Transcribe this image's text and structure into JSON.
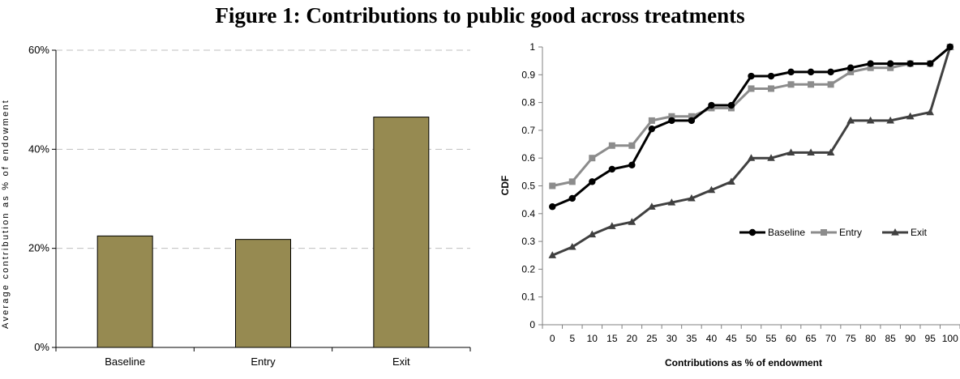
{
  "figure_title": "Figure 1: Contributions to public good across treatments",
  "colors": {
    "bar_fill": "#968A51",
    "gridline": "#BFBFBF",
    "axis": "#808080",
    "baseline": "#000000",
    "entry": "#8C8C8C",
    "exit": "#404040"
  },
  "chart_data": [
    {
      "type": "bar",
      "title": "",
      "categories": [
        "Baseline",
        "Entry",
        "Exit"
      ],
      "values": [
        22.5,
        21.8,
        46.5
      ],
      "ylabel": "Average contribution as % of endowment",
      "xlabel": "",
      "ylim": [
        0,
        60
      ],
      "yticks": [
        0,
        20,
        40,
        60
      ],
      "ytick_labels": [
        "0%",
        "20%",
        "40%",
        "60%"
      ],
      "grid": true,
      "grid_style": "dashed"
    },
    {
      "type": "line",
      "title": "",
      "xlabel": "Contributions as % of endowment",
      "ylabel": "CDF",
      "x": [
        0,
        5,
        10,
        15,
        20,
        25,
        30,
        35,
        40,
        45,
        50,
        55,
        60,
        65,
        70,
        75,
        80,
        85,
        90,
        95,
        100
      ],
      "ylim": [
        0,
        1
      ],
      "yticks": [
        0,
        0.1,
        0.2,
        0.3,
        0.4,
        0.5,
        0.6,
        0.7,
        0.8,
        0.9,
        1
      ],
      "ytick_labels": [
        "0",
        "0.1",
        "0.2",
        "0.3",
        "0.4",
        "0.5",
        "0.6",
        "0.7",
        "0.8",
        "0.9",
        "1"
      ],
      "grid": false,
      "legend_position": "center-right",
      "series": [
        {
          "name": "Baseline",
          "marker": "circle",
          "color": "#000000",
          "values": [
            0.425,
            0.455,
            0.515,
            0.56,
            0.575,
            0.705,
            0.735,
            0.735,
            0.79,
            0.79,
            0.895,
            0.895,
            0.91,
            0.91,
            0.91,
            0.925,
            0.94,
            0.94,
            0.94,
            0.94,
            1.0
          ]
        },
        {
          "name": "Entry",
          "marker": "square",
          "color": "#8C8C8C",
          "values": [
            0.5,
            0.515,
            0.6,
            0.645,
            0.645,
            0.735,
            0.75,
            0.75,
            0.78,
            0.78,
            0.85,
            0.85,
            0.865,
            0.865,
            0.865,
            0.91,
            0.925,
            0.925,
            0.94,
            0.94,
            1.0
          ]
        },
        {
          "name": "Exit",
          "marker": "triangle",
          "color": "#404040",
          "values": [
            0.25,
            0.28,
            0.325,
            0.355,
            0.37,
            0.425,
            0.44,
            0.455,
            0.485,
            0.515,
            0.6,
            0.6,
            0.62,
            0.62,
            0.62,
            0.735,
            0.735,
            0.735,
            0.75,
            0.765,
            1.0
          ]
        }
      ]
    }
  ]
}
